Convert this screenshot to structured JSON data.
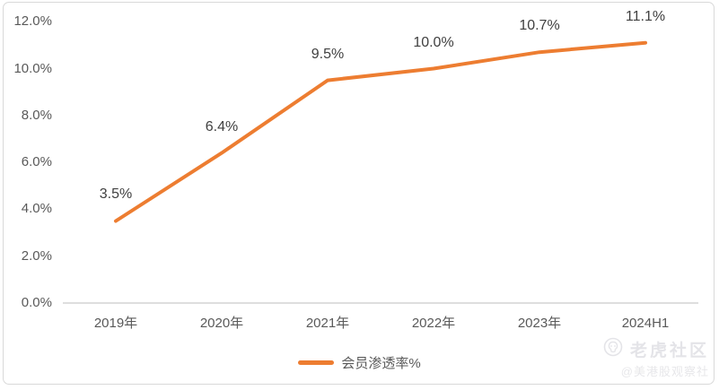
{
  "chart_data": {
    "type": "line",
    "categories": [
      "2019年",
      "2020年",
      "2021年",
      "2022年",
      "2023年",
      "2024H1"
    ],
    "series": [
      {
        "name": "会员渗透率%",
        "values": [
          3.5,
          6.4,
          9.5,
          10.0,
          10.7,
          11.1
        ]
      }
    ],
    "data_labels": [
      "3.5%",
      "6.4%",
      "9.5%",
      "10.0%",
      "10.7%",
      "11.1%"
    ],
    "y_ticks": [
      "0.0%",
      "2.0%",
      "4.0%",
      "6.0%",
      "8.0%",
      "10.0%",
      "12.0%"
    ],
    "ylim": [
      0,
      12
    ],
    "y_step": 2,
    "title": "",
    "xlabel": "",
    "ylabel": "",
    "grid": false,
    "legend_position": "bottom",
    "markers": false
  },
  "legend": {
    "label": "会员渗透率%"
  },
  "watermark": {
    "brand": "老虎社区",
    "handle": "@美港股观察社"
  },
  "colors": {
    "line": "#ED7D31",
    "axis_line": "#c9c9c9",
    "axis_text": "#595959",
    "data_label_text": "#404040",
    "frame_border": "#d9d9d9",
    "watermark": "#e4e4e8"
  }
}
